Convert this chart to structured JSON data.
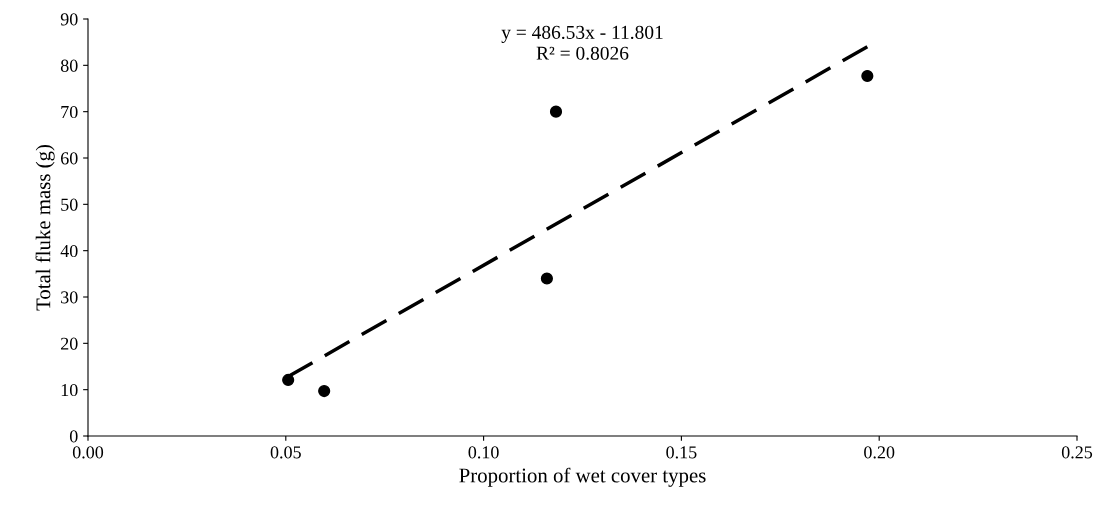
{
  "chart_data": {
    "type": "scatter",
    "xlabel": "Proportion of wet cover types",
    "ylabel": "Total fluke mass (g)",
    "xlim": [
      0,
      0.25
    ],
    "ylim": [
      0,
      90
    ],
    "xticks": [
      {
        "value": 0,
        "label": "0.00"
      },
      {
        "value": 0.05,
        "label": "0.05"
      },
      {
        "value": 0.1,
        "label": "0.10"
      },
      {
        "value": 0.15,
        "label": "0.15"
      },
      {
        "value": 0.2,
        "label": "0.20"
      },
      {
        "value": 0.25,
        "label": "0.25"
      }
    ],
    "yticks": [
      0,
      10,
      20,
      30,
      40,
      50,
      60,
      70,
      80,
      90
    ],
    "grid": false,
    "legend": false,
    "series": [
      {
        "color": "#000000",
        "marker": "circle",
        "x": [
          0.0506,
          0.0597,
          0.116,
          0.1183,
          0.197
        ],
        "values": [
          12.1,
          9.7,
          34.0,
          70.0,
          77.7
        ]
      },
      {
        "type": "line",
        "color": "#000000",
        "line_style": "dashed",
        "marker": "none",
        "x": [
          0.0505,
          0.197
        ],
        "values": [
          12.8,
          84.0
        ]
      }
    ],
    "annotations": [
      "y = 486.53x - 11.801",
      "R² = 0.8026"
    ]
  }
}
